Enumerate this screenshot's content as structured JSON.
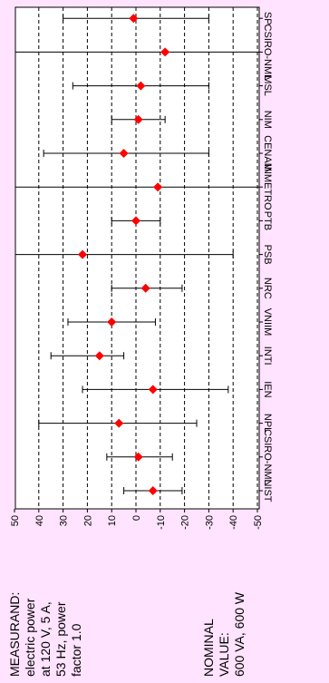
{
  "chart_data": {
    "type": "scatter",
    "orientation": "rotated",
    "categories": [
      "NIST",
      "CSIRO-NML",
      "NPL",
      "IEN",
      "INTI",
      "VNIIM",
      "NRC",
      "PSB",
      "PTB",
      "INMETRO",
      "CENAM",
      "NIM",
      "MSL",
      "CSIRO-NML",
      "SP"
    ],
    "series": [
      {
        "marker": "diamond",
        "color": "#ff0000",
        "values": [
          -7,
          -1,
          7,
          -7,
          15,
          10,
          -4,
          22,
          0,
          -9,
          5,
          -1,
          -2,
          -12,
          1
        ],
        "error_low": [
          -19,
          -15,
          -25,
          -38,
          5,
          -8,
          -19,
          -40,
          -10,
          -52,
          -30,
          -12,
          -30,
          -55,
          -30
        ],
        "error_high": [
          5,
          12,
          40,
          22,
          35,
          28,
          10,
          55,
          10,
          50,
          38,
          10,
          26,
          50,
          30
        ]
      }
    ],
    "ylim": [
      -50,
      50
    ],
    "yticks": [
      "50",
      "40",
      "30",
      "20",
      "10",
      "0",
      "-10",
      "-20",
      "-30",
      "-40",
      "-50"
    ],
    "grid": true
  },
  "notes": {
    "measurand": [
      "MEASURAND:",
      "electric power",
      "at 120 V, 5 A,",
      "53 Hz, power",
      "factor 1.0"
    ],
    "nominal": [
      "NOMINAL",
      "VALUE:",
      "600 VA, 600 W"
    ]
  },
  "colors": {
    "background": "#ffe3ff",
    "plot_background": "#ffffff",
    "marker": "#ff0000"
  }
}
